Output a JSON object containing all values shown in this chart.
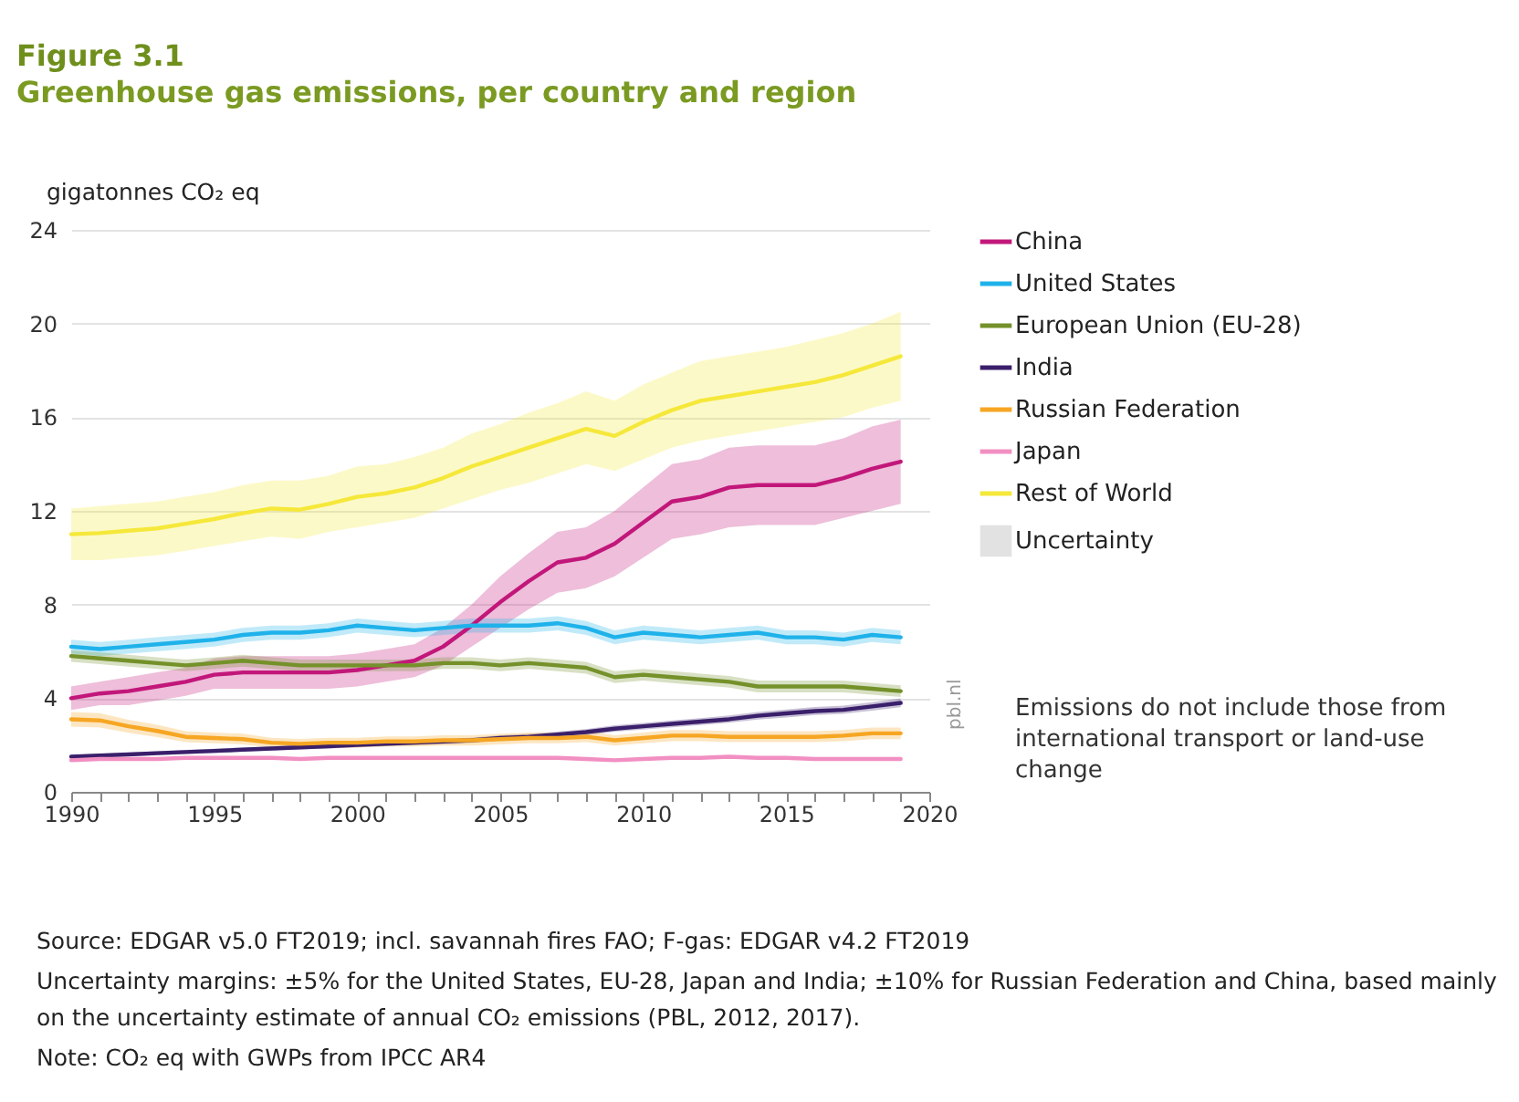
{
  "chart_data": {
    "type": "line",
    "title": "Figure 3.1",
    "subtitle": "Greenhouse gas emissions, per country and region",
    "ylabel": "gigatonnes CO₂ eq",
    "x": [
      1990,
      1991,
      1992,
      1993,
      1994,
      1995,
      1996,
      1997,
      1998,
      1999,
      2000,
      2001,
      2002,
      2003,
      2004,
      2005,
      2006,
      2007,
      2008,
      2009,
      2010,
      2011,
      2012,
      2013,
      2014,
      2015,
      2016,
      2017,
      2018,
      2019
    ],
    "series": [
      {
        "name": "China",
        "color": "#c2177a",
        "values": [
          4.0,
          4.2,
          4.3,
          4.5,
          4.7,
          5.0,
          5.1,
          5.1,
          5.1,
          5.1,
          5.2,
          5.4,
          5.6,
          6.2,
          7.1,
          8.1,
          9.0,
          9.8,
          10.0,
          10.6,
          11.5,
          12.4,
          12.6,
          13.0,
          13.1,
          13.1,
          13.1,
          13.4,
          13.8,
          14.1
        ],
        "lower": [
          3.5,
          3.7,
          3.7,
          3.9,
          4.1,
          4.4,
          4.4,
          4.4,
          4.4,
          4.4,
          4.5,
          4.7,
          4.9,
          5.4,
          6.2,
          7.0,
          7.8,
          8.5,
          8.7,
          9.2,
          10.0,
          10.8,
          11.0,
          11.3,
          11.4,
          11.4,
          11.4,
          11.7,
          12.0,
          12.3
        ],
        "upper": [
          4.5,
          4.7,
          4.9,
          5.1,
          5.3,
          5.7,
          5.8,
          5.8,
          5.8,
          5.8,
          5.9,
          6.1,
          6.3,
          7.0,
          8.0,
          9.2,
          10.2,
          11.1,
          11.3,
          12.0,
          13.0,
          14.0,
          14.2,
          14.7,
          14.8,
          14.8,
          14.8,
          15.1,
          15.6,
          15.9
        ]
      },
      {
        "name": "United States",
        "color": "#1fb2ea",
        "values": [
          6.2,
          6.1,
          6.2,
          6.3,
          6.4,
          6.5,
          6.7,
          6.8,
          6.8,
          6.9,
          7.1,
          7.0,
          6.9,
          7.0,
          7.1,
          7.1,
          7.1,
          7.2,
          7.0,
          6.6,
          6.8,
          6.7,
          6.6,
          6.7,
          6.8,
          6.6,
          6.6,
          6.5,
          6.7,
          6.6
        ],
        "lower": [
          5.9,
          5.8,
          5.9,
          6.0,
          6.1,
          6.2,
          6.4,
          6.5,
          6.5,
          6.6,
          6.8,
          6.7,
          6.6,
          6.7,
          6.8,
          6.8,
          6.8,
          6.9,
          6.7,
          6.3,
          6.5,
          6.4,
          6.3,
          6.4,
          6.5,
          6.3,
          6.3,
          6.2,
          6.4,
          6.3
        ],
        "upper": [
          6.5,
          6.4,
          6.5,
          6.6,
          6.7,
          6.8,
          7.0,
          7.1,
          7.1,
          7.2,
          7.4,
          7.3,
          7.2,
          7.3,
          7.4,
          7.4,
          7.4,
          7.5,
          7.3,
          6.9,
          7.1,
          7.0,
          6.9,
          7.0,
          7.1,
          6.9,
          6.9,
          6.8,
          7.0,
          6.9
        ]
      },
      {
        "name": "European Union (EU-28)",
        "color": "#74912a",
        "values": [
          5.8,
          5.7,
          5.6,
          5.5,
          5.4,
          5.5,
          5.6,
          5.5,
          5.4,
          5.4,
          5.4,
          5.4,
          5.4,
          5.5,
          5.5,
          5.4,
          5.5,
          5.4,
          5.3,
          4.9,
          5.0,
          4.9,
          4.8,
          4.7,
          4.5,
          4.5,
          4.5,
          4.5,
          4.4,
          4.3
        ],
        "lower": [
          5.55,
          5.45,
          5.35,
          5.25,
          5.15,
          5.25,
          5.35,
          5.25,
          5.15,
          5.15,
          5.15,
          5.15,
          5.15,
          5.25,
          5.25,
          5.15,
          5.25,
          5.15,
          5.05,
          4.65,
          4.75,
          4.65,
          4.55,
          4.45,
          4.25,
          4.25,
          4.25,
          4.25,
          4.15,
          4.05
        ],
        "upper": [
          6.05,
          5.95,
          5.85,
          5.75,
          5.65,
          5.75,
          5.85,
          5.75,
          5.65,
          5.65,
          5.65,
          5.65,
          5.65,
          5.75,
          5.75,
          5.65,
          5.75,
          5.65,
          5.55,
          5.15,
          5.25,
          5.15,
          5.05,
          4.95,
          4.75,
          4.75,
          4.75,
          4.75,
          4.65,
          4.55
        ]
      },
      {
        "name": "India",
        "color": "#3a1f6b",
        "values": [
          1.5,
          1.55,
          1.6,
          1.65,
          1.7,
          1.75,
          1.8,
          1.85,
          1.9,
          1.95,
          2.0,
          2.05,
          2.1,
          2.15,
          2.2,
          2.3,
          2.35,
          2.45,
          2.55,
          2.7,
          2.8,
          2.9,
          3.0,
          3.1,
          3.25,
          3.35,
          3.45,
          3.5,
          3.65,
          3.8
        ],
        "lower": [
          1.43,
          1.47,
          1.52,
          1.57,
          1.62,
          1.66,
          1.71,
          1.76,
          1.81,
          1.85,
          1.9,
          1.95,
          2.0,
          2.04,
          2.09,
          2.19,
          2.23,
          2.33,
          2.42,
          2.57,
          2.66,
          2.76,
          2.85,
          2.95,
          3.09,
          3.18,
          3.28,
          3.33,
          3.47,
          3.61
        ],
        "upper": [
          1.58,
          1.63,
          1.68,
          1.73,
          1.79,
          1.84,
          1.89,
          1.94,
          2.0,
          2.05,
          2.1,
          2.15,
          2.21,
          2.26,
          2.31,
          2.42,
          2.47,
          2.57,
          2.68,
          2.84,
          2.94,
          3.05,
          3.15,
          3.26,
          3.41,
          3.52,
          3.62,
          3.68,
          3.83,
          3.99
        ]
      },
      {
        "name": "Russian Federation",
        "color": "#f6a623",
        "values": [
          3.1,
          3.05,
          2.8,
          2.6,
          2.35,
          2.3,
          2.25,
          2.1,
          2.05,
          2.1,
          2.1,
          2.15,
          2.15,
          2.2,
          2.2,
          2.25,
          2.3,
          2.3,
          2.35,
          2.2,
          2.3,
          2.4,
          2.4,
          2.35,
          2.35,
          2.35,
          2.35,
          2.4,
          2.5,
          2.5
        ],
        "lower": [
          2.79,
          2.75,
          2.52,
          2.34,
          2.12,
          2.07,
          2.03,
          1.89,
          1.85,
          1.89,
          1.89,
          1.94,
          1.94,
          1.98,
          1.98,
          2.03,
          2.07,
          2.07,
          2.12,
          1.98,
          2.07,
          2.16,
          2.16,
          2.12,
          2.12,
          2.12,
          2.12,
          2.16,
          2.25,
          2.25
        ],
        "upper": [
          3.41,
          3.36,
          3.08,
          2.86,
          2.59,
          2.53,
          2.48,
          2.31,
          2.26,
          2.31,
          2.31,
          2.37,
          2.37,
          2.42,
          2.42,
          2.48,
          2.53,
          2.53,
          2.59,
          2.42,
          2.53,
          2.64,
          2.64,
          2.59,
          2.59,
          2.59,
          2.59,
          2.64,
          2.75,
          2.75
        ]
      },
      {
        "name": "Japan",
        "color": "#f28fc2",
        "values": [
          1.35,
          1.4,
          1.4,
          1.4,
          1.45,
          1.45,
          1.45,
          1.45,
          1.4,
          1.45,
          1.45,
          1.45,
          1.45,
          1.45,
          1.45,
          1.45,
          1.45,
          1.45,
          1.4,
          1.35,
          1.4,
          1.45,
          1.45,
          1.5,
          1.45,
          1.45,
          1.4,
          1.4,
          1.4,
          1.4
        ]
      },
      {
        "name": "Rest of World",
        "color": "#f5e83a",
        "values": [
          11.0,
          11.05,
          11.15,
          11.25,
          11.45,
          11.65,
          11.9,
          12.1,
          12.05,
          12.3,
          12.6,
          12.75,
          13.0,
          13.4,
          13.9,
          14.3,
          14.7,
          15.1,
          15.5,
          15.2,
          15.8,
          16.3,
          16.7,
          16.9,
          17.1,
          17.3,
          17.5,
          17.8,
          18.2,
          18.6
        ],
        "lower": [
          9.9,
          9.9,
          10.0,
          10.1,
          10.3,
          10.5,
          10.7,
          10.9,
          10.8,
          11.1,
          11.3,
          11.5,
          11.7,
          12.1,
          12.5,
          12.9,
          13.2,
          13.6,
          14.0,
          13.7,
          14.2,
          14.7,
          15.0,
          15.2,
          15.4,
          15.6,
          15.8,
          16.0,
          16.4,
          16.7
        ],
        "upper": [
          12.1,
          12.2,
          12.3,
          12.4,
          12.6,
          12.8,
          13.1,
          13.3,
          13.3,
          13.5,
          13.9,
          14.0,
          14.3,
          14.7,
          15.3,
          15.7,
          16.2,
          16.6,
          17.1,
          16.7,
          17.4,
          17.9,
          18.4,
          18.6,
          18.8,
          19.0,
          19.3,
          19.6,
          20.0,
          20.5
        ]
      }
    ],
    "xlim": [
      1990,
      2020
    ],
    "xticks": [
      1990,
      {
        "value": 1991,
        "label": null
      },
      {
        "value": 1992,
        "label": null
      },
      {
        "value": 1993,
        "label": null
      },
      {
        "value": 1994,
        "label": null
      },
      1995,
      {
        "value": 1996,
        "label": null
      },
      {
        "value": 1997,
        "label": null
      },
      {
        "value": 1998,
        "label": null
      },
      {
        "value": 1999,
        "label": null
      },
      2000,
      {
        "value": 2001,
        "label": null
      },
      {
        "value": 2002,
        "label": null
      },
      {
        "value": 2003,
        "label": null
      },
      {
        "value": 2004,
        "label": null
      },
      2005,
      {
        "value": 2006,
        "label": null
      },
      {
        "value": 2007,
        "label": null
      },
      {
        "value": 2008,
        "label": null
      },
      {
        "value": 2009,
        "label": null
      },
      2010,
      {
        "value": 2011,
        "label": null
      },
      {
        "value": 2012,
        "label": null
      },
      {
        "value": 2013,
        "label": null
      },
      {
        "value": 2014,
        "label": null
      },
      2015,
      {
        "value": 2016,
        "label": null
      },
      {
        "value": 2017,
        "label": null
      },
      {
        "value": 2018,
        "label": null
      },
      {
        "value": 2019,
        "label": null
      },
      2020
    ],
    "ylim": [
      0,
      24
    ],
    "yticks": [
      0,
      4,
      8,
      12,
      16,
      20,
      24
    ],
    "grid": "y",
    "legend": "right",
    "annotations": [
      "Uncertainty",
      "Emissions do not include those from international transport or land-use change",
      "pbl.nl",
      "Source: EDGAR v5.0 FT2019; incl. savannah fires FAO; F-gas: EDGAR v4.2 FT2019",
      "Uncertainty margins: ±5% for the United States, EU-28, Japan and India; ±10% for Russian Federation and China, based mainly on the uncertainty estimate of annual CO₂ emissions (PBL, 2012, 2017).",
      "Note: CO₂ eq with GWPs from IPCC AR4"
    ]
  }
}
